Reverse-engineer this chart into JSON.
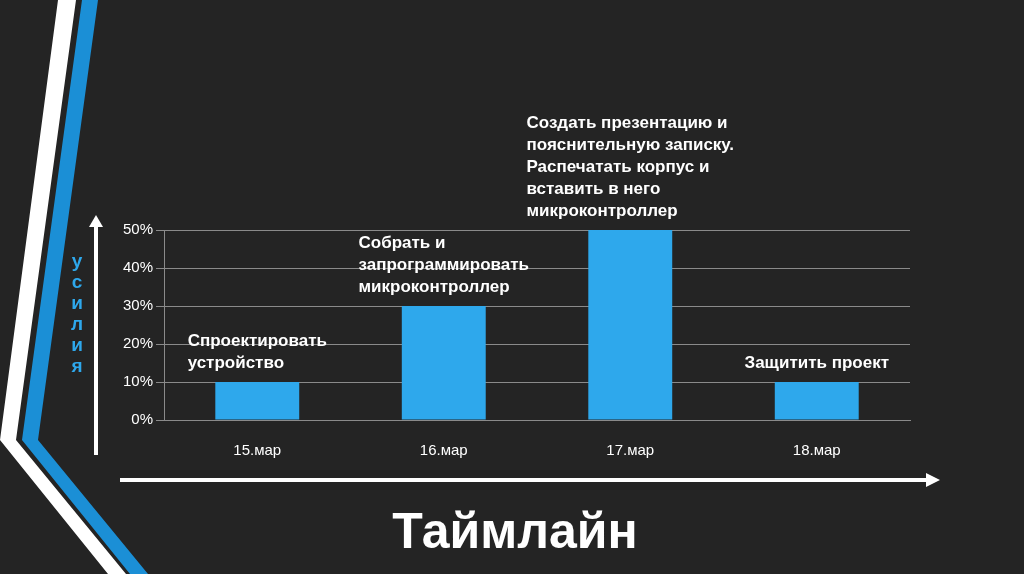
{
  "chart_data": {
    "type": "bar",
    "title": "Таймлайн",
    "ylabel": "усилия",
    "categories": [
      "15.мар",
      "16.мар",
      "17.мар",
      "18.мар"
    ],
    "values": [
      10,
      30,
      50,
      10
    ],
    "color": "#2ea8ec",
    "ylim": [
      0,
      50
    ],
    "yticks": [
      {
        "value": 0,
        "label": "0%"
      },
      {
        "value": 10,
        "label": "10%"
      },
      {
        "value": 20,
        "label": "20%"
      },
      {
        "value": 30,
        "label": "30%"
      },
      {
        "value": 40,
        "label": "40%"
      },
      {
        "value": 50,
        "label": "50%"
      }
    ],
    "grid": "y",
    "annotations": [
      {
        "text": "Спроектировать устройство",
        "x": "15.мар",
        "y": 10
      },
      {
        "text": "Собрать и запрограммировать микроконтроллер",
        "x": "16.мар",
        "y": 30
      },
      {
        "text": "Создать презентацию и пояснительную записку.\nРаспечатать корпус и вставить в него микроконтроллер",
        "x": "17.мар",
        "y": 50
      },
      {
        "text": "Защитить проект",
        "x": "18.мар",
        "y": 10
      }
    ]
  }
}
